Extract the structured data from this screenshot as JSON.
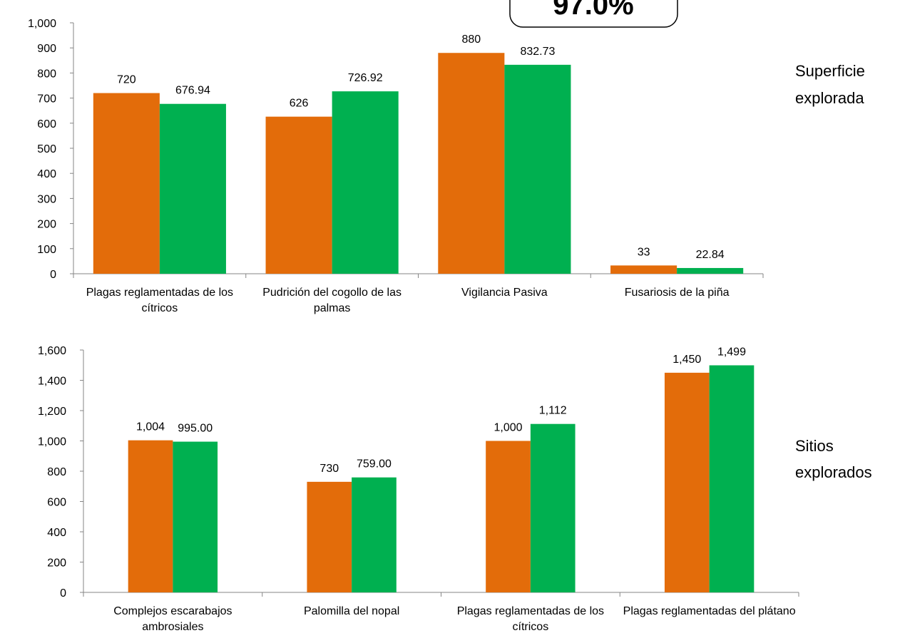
{
  "chart_data": [
    {
      "type": "bar",
      "annotation": "97.0%",
      "side_label": [
        "Superficie",
        "explorada"
      ],
      "categories": [
        "Plagas reglamentadas de los cítricos",
        "Pudrición del cogollo de las palmas",
        "Vigilancia Pasiva",
        "Fusariosis de la piña"
      ],
      "series": [
        {
          "color": "#e36c0a",
          "values": [
            720,
            626,
            880,
            33
          ]
        },
        {
          "color": "#00b050",
          "values": [
            676.94,
            726.92,
            832.73,
            22.84
          ]
        }
      ],
      "ylim": [
        0,
        1000
      ],
      "yticks": [
        0,
        100,
        200,
        300,
        400,
        500,
        600,
        700,
        800,
        900,
        {
          "value": 1000,
          "label": "1,000"
        }
      ],
      "grid": false
    },
    {
      "type": "bar",
      "side_label": [
        "Sitios",
        "explorados"
      ],
      "categories": [
        "Complejos escarabajos ambrosiales",
        "Palomilla del nopal",
        "Plagas reglamentadas de los cítricos",
        "Plagas reglamentadas del plátano"
      ],
      "series": [
        {
          "color": "#e36c0a",
          "values": [
            1004,
            730,
            1000,
            1450
          ],
          "value_labels": [
            "1,004",
            "730",
            "1,000",
            "1,450"
          ]
        },
        {
          "color": "#00b050",
          "values": [
            995,
            759,
            1112,
            1499
          ],
          "value_labels": [
            "995.00",
            "759.00",
            "1,112",
            "1,499"
          ]
        }
      ],
      "ylim": [
        0,
        1600
      ],
      "yticks": [
        0,
        200,
        400,
        600,
        800,
        {
          "value": 1000,
          "label": "1,000"
        },
        {
          "value": 1200,
          "label": "1,200"
        },
        {
          "value": 1400,
          "label": "1,400"
        },
        {
          "value": 1600,
          "label": "1,600"
        }
      ],
      "grid": false
    }
  ]
}
